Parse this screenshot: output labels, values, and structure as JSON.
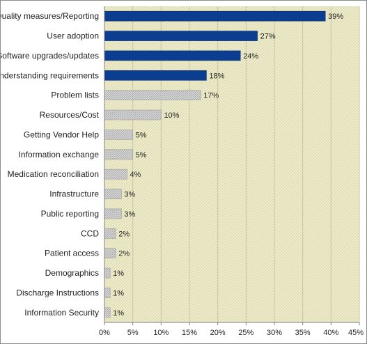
{
  "chart_data": {
    "type": "bar",
    "orientation": "horizontal",
    "categories": [
      "Quality measures/Reporting",
      "User adoption",
      "Software upgrades/updates",
      "Understanding requirements",
      "Problem lists",
      "Resources/Cost",
      "Getting Vendor Help",
      "Information exchange",
      "Medication reconciliation",
      "Infrastructure",
      "Public reporting",
      "CCD",
      "Patient access",
      "Demographics",
      "Discharge Instructions",
      "Information Security"
    ],
    "values": [
      39,
      27,
      24,
      18,
      17,
      10,
      5,
      5,
      4,
      3,
      3,
      2,
      2,
      1,
      1,
      1
    ],
    "data_labels": [
      "39%",
      "27%",
      "24%",
      "18%",
      "17%",
      "10%",
      "5%",
      "5%",
      "4%",
      "3%",
      "3%",
      "2%",
      "2%",
      "1%",
      "1%",
      "1%"
    ],
    "highlighted_count": 4,
    "xlim": [
      0,
      45
    ],
    "xticks": [
      0,
      5,
      10,
      15,
      20,
      25,
      30,
      35,
      40,
      45
    ],
    "xtick_labels": [
      "0%",
      "5%",
      "10%",
      "15%",
      "20%",
      "25%",
      "30%",
      "35%",
      "40%",
      "45%"
    ],
    "title": "",
    "xlabel": "",
    "ylabel": "",
    "grid": true,
    "colors": {
      "highlight_bar": "#0b3d91",
      "other_bar": "#d4d4d4",
      "plot_background": "#eeecc9",
      "axis": "#7f7f7f"
    }
  }
}
